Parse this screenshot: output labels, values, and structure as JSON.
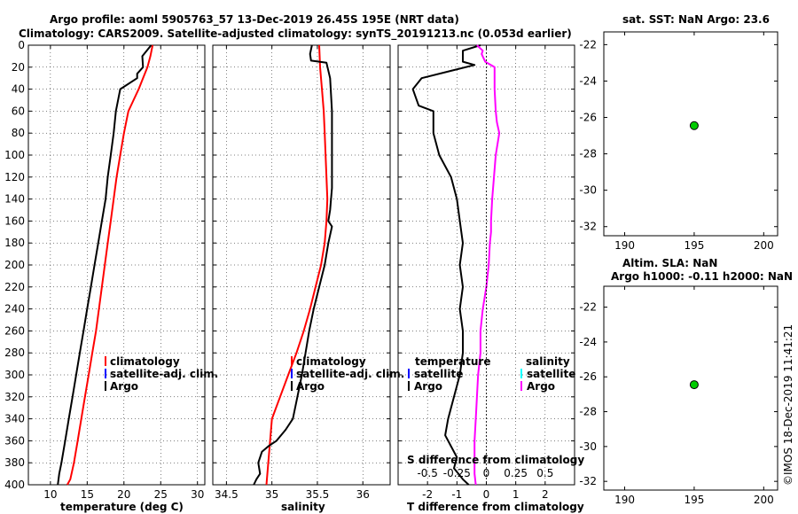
{
  "header": {
    "title_line1": "Argo profile: aoml 5905763_57 13-Dec-2019 26.45S 195E (NRT data)",
    "title_line2": "Climatology: CARS2009. Satellite-adjusted climatology: synTS_20191213.nc (0.053d earlier)",
    "timestamp": "©IMOS 18-Dec-2019 11:41:21"
  },
  "colors": {
    "climatology": "#ff0000",
    "satellite": "#0000ff",
    "argo": "#000000",
    "argo_salinity_diff": "#ff00ff",
    "satellite_salinity": "#00ffff",
    "marker_fill": "#00cc00"
  },
  "chart_data": [
    {
      "type": "line",
      "id": "temperature",
      "xlabel": "temperature (deg C)",
      "ylabel": "depth",
      "xlim": [
        7,
        31
      ],
      "ylim": [
        400,
        0
      ],
      "xticks": [
        10,
        15,
        20,
        25,
        30
      ],
      "yticks": [
        0,
        20,
        40,
        60,
        80,
        100,
        120,
        140,
        160,
        180,
        200,
        220,
        240,
        260,
        280,
        300,
        320,
        340,
        360,
        380,
        400
      ],
      "legend": [
        "climatology",
        "satellite-adj. clim.",
        "Argo"
      ],
      "legend_position": "bottom-right",
      "series": [
        {
          "name": "climatology",
          "x": [
            23.9,
            23.6,
            23.2,
            22.6,
            22.0,
            21.3,
            20.6,
            20.0,
            19.5,
            19.0,
            18.6,
            18.2,
            17.8,
            17.4,
            17.0,
            16.6,
            16.2,
            15.7,
            15.2,
            14.7,
            14.2,
            13.7,
            13.2,
            12.7,
            12.3
          ],
          "y": [
            0,
            10,
            20,
            30,
            40,
            50,
            60,
            80,
            100,
            120,
            140,
            160,
            180,
            200,
            220,
            240,
            260,
            280,
            300,
            320,
            340,
            360,
            380,
            395,
            400
          ]
        },
        {
          "name": "Argo",
          "x": [
            23.7,
            22.5,
            22.6,
            21.8,
            21.8,
            19.5,
            18.9,
            18.6,
            18.2,
            17.8,
            17.5,
            17.0,
            16.5,
            16.0,
            15.5,
            15.0,
            14.5,
            14.0,
            13.5,
            13.0,
            12.5,
            12.0,
            11.5,
            11.2,
            11.0
          ],
          "y": [
            0,
            10,
            20,
            26,
            30,
            40,
            60,
            80,
            100,
            120,
            140,
            160,
            180,
            200,
            220,
            240,
            260,
            280,
            300,
            320,
            340,
            360,
            380,
            390,
            400
          ]
        }
      ]
    },
    {
      "type": "line",
      "id": "salinity",
      "xlabel": "salinity",
      "xlim": [
        34.35,
        36.3
      ],
      "ylim": [
        400,
        0
      ],
      "xticks": [
        34.5,
        35,
        35.5,
        36
      ],
      "xtick_labels": [
        "34.5",
        "35",
        "35.5",
        "36"
      ],
      "legend": [
        "climatology",
        "satellite-adj. clim.",
        "Argo"
      ],
      "legend_position": "bottom-right",
      "series": [
        {
          "name": "climatology",
          "x": [
            35.52,
            35.53,
            35.55,
            35.57,
            35.58,
            35.59,
            35.6,
            35.61,
            35.6,
            35.58,
            35.54,
            35.48,
            35.42,
            35.35,
            35.27,
            35.18,
            35.09,
            35.0,
            34.94
          ],
          "y": [
            0,
            20,
            40,
            60,
            80,
            100,
            120,
            140,
            160,
            180,
            200,
            220,
            240,
            260,
            280,
            300,
            320,
            340,
            400
          ]
        },
        {
          "name": "Argo",
          "x": [
            35.44,
            35.42,
            35.43,
            35.6,
            35.64,
            35.66,
            35.66,
            35.66,
            35.64,
            35.62,
            35.66,
            35.62,
            35.58,
            35.52,
            35.46,
            35.41,
            35.37,
            35.33,
            35.28,
            35.23,
            35.15,
            35.05,
            34.96,
            34.89,
            34.85,
            34.87,
            34.83,
            34.8
          ],
          "y": [
            0,
            8,
            14,
            16,
            30,
            60,
            100,
            130,
            150,
            160,
            165,
            180,
            200,
            220,
            240,
            260,
            280,
            300,
            320,
            340,
            350,
            360,
            365,
            370,
            380,
            390,
            395,
            400
          ]
        }
      ]
    },
    {
      "type": "line",
      "id": "difference",
      "xlabel": "T difference from climatology",
      "xlabel_top": "S difference from climatology",
      "xlim": [
        -3,
        3
      ],
      "ylim": [
        400,
        0
      ],
      "xticks": [
        -2,
        -1,
        0,
        1,
        2
      ],
      "xtick_labels": [
        "-2",
        "-1",
        "0",
        "1",
        "2"
      ],
      "xticks_top_labels": [
        "-0.5",
        "-0.25",
        "0",
        "0.25",
        "0.5"
      ],
      "legend_temperature_title": "temperature",
      "legend_salinity_title": "salinity",
      "legend_temperature": [
        "satellite",
        "Argo"
      ],
      "legend_salinity": [
        "satellite",
        "Argo"
      ],
      "series": [
        {
          "name": "T difference (Argo)",
          "x": [
            -0.2,
            -0.8,
            -0.8,
            -0.4,
            -2.2,
            -2.5,
            -2.3,
            -1.8,
            -1.8,
            -1.6,
            -1.2,
            -1.0,
            -0.9,
            -0.8,
            -0.9,
            -0.8,
            -0.9,
            -0.8,
            -0.8,
            -0.9,
            -1.1,
            -1.3,
            -1.4,
            -1.2,
            -1.0,
            -1.1,
            -0.8,
            -0.6
          ],
          "y": [
            0,
            5,
            15,
            18,
            30,
            40,
            55,
            60,
            80,
            100,
            120,
            140,
            160,
            180,
            200,
            220,
            240,
            260,
            280,
            300,
            320,
            340,
            355,
            365,
            375,
            385,
            395,
            400
          ]
        },
        {
          "name": "S difference (Argo)",
          "x": [
            -0.08,
            -0.03,
            -0.04,
            -0.01,
            0.07,
            0.07,
            0.08,
            0.09,
            0.11,
            0.08,
            0.05,
            0.04,
            0.04,
            0.03,
            0.02,
            0.0,
            -0.03,
            -0.05,
            -0.05,
            -0.07,
            -0.08,
            -0.09,
            -0.1,
            -0.1,
            -0.1,
            -0.1,
            -0.09
          ],
          "y": [
            0,
            5,
            8,
            15,
            20,
            40,
            60,
            70,
            80,
            100,
            140,
            160,
            170,
            180,
            200,
            220,
            240,
            260,
            280,
            300,
            320,
            340,
            360,
            370,
            380,
            390,
            400
          ]
        }
      ]
    },
    {
      "type": "scatter",
      "id": "map-sst",
      "title": "sat. SST: NaN Argo: 23.6",
      "xlim": [
        188.5,
        201
      ],
      "ylim": [
        -32.5,
        -21.3
      ],
      "xticks": [
        190,
        195,
        200
      ],
      "yticks": [
        -22,
        -24,
        -26,
        -28,
        -30,
        -32
      ],
      "points": [
        {
          "x": 195,
          "y": -26.45
        }
      ]
    },
    {
      "type": "scatter",
      "id": "map-sla",
      "title_line1": "Altim. SLA: NaN",
      "title_line2": "Argo h1000: -0.11 h2000: NaN",
      "xlim": [
        188.5,
        201
      ],
      "ylim": [
        -32.5,
        -20.8
      ],
      "xticks": [
        190,
        195,
        200
      ],
      "yticks": [
        -22,
        -24,
        -26,
        -28,
        -30,
        -32
      ],
      "points": [
        {
          "x": 195,
          "y": -26.45
        }
      ]
    }
  ]
}
